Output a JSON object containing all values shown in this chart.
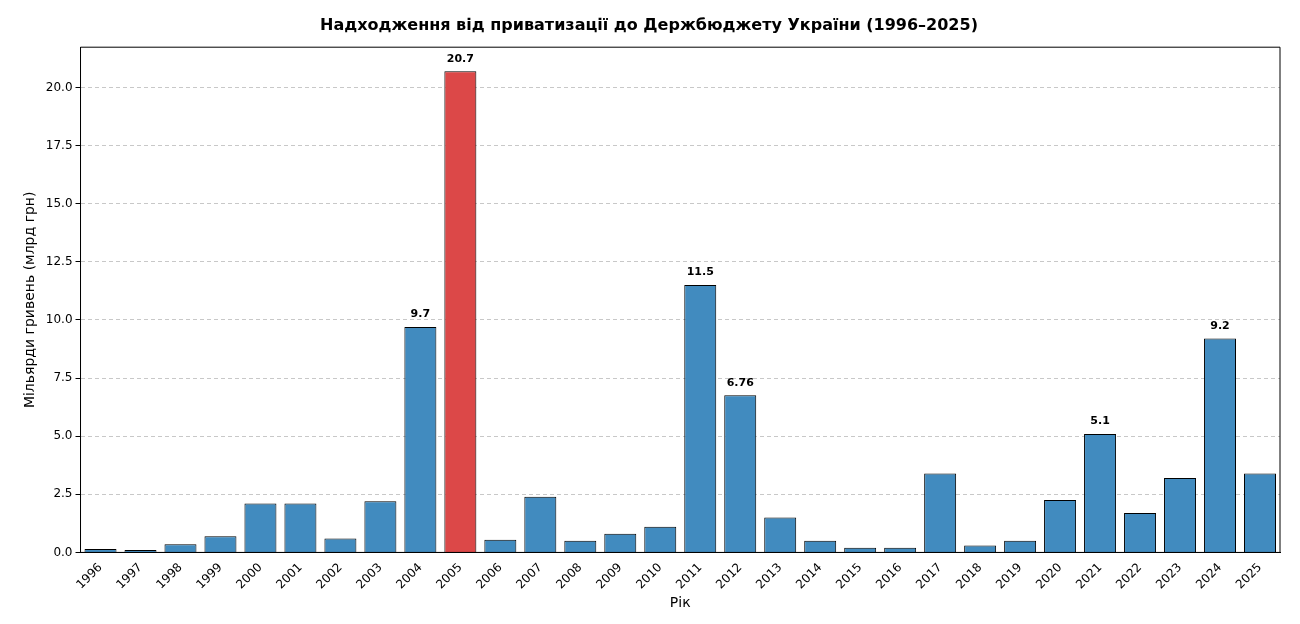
{
  "chart_data": {
    "type": "bar",
    "title": "Надходження від приватизації до Держбюджету України (1996–2025)",
    "xlabel": "Рік",
    "ylabel": "Мільярди гривень (млрд грн)",
    "categories": [
      "1996",
      "1997",
      "1998",
      "1999",
      "2000",
      "2001",
      "2002",
      "2003",
      "2004",
      "2005",
      "2006",
      "2007",
      "2008",
      "2009",
      "2010",
      "2011",
      "2012",
      "2013",
      "2014",
      "2015",
      "2016",
      "2017",
      "2018",
      "2019",
      "2020",
      "2021",
      "2022",
      "2023",
      "2024",
      "2025"
    ],
    "values": [
      0.15,
      0.1,
      0.35,
      0.7,
      2.1,
      2.1,
      0.6,
      2.2,
      9.7,
      20.7,
      0.55,
      2.4,
      0.5,
      0.8,
      1.1,
      11.5,
      6.76,
      1.5,
      0.5,
      0.2,
      0.2,
      3.4,
      0.3,
      0.5,
      2.25,
      5.1,
      1.7,
      3.2,
      9.2,
      3.4
    ],
    "colors": [
      "#418bbf",
      "#418bbf",
      "#418bbf",
      "#418bbf",
      "#418bbf",
      "#418bbf",
      "#418bbf",
      "#418bbf",
      "#418bbf",
      "#dc4848",
      "#418bbf",
      "#418bbf",
      "#418bbf",
      "#418bbf",
      "#418bbf",
      "#418bbf",
      "#418bbf",
      "#418bbf",
      "#418bbf",
      "#418bbf",
      "#418bbf",
      "#418bbf",
      "#418bbf",
      "#418bbf",
      "#418bbf",
      "#418bbf",
      "#418bbf",
      "#418bbf",
      "#418bbf",
      "#418bbf"
    ],
    "value_labels": [
      null,
      null,
      null,
      null,
      null,
      null,
      null,
      null,
      "9.7",
      "20.7",
      null,
      null,
      null,
      null,
      null,
      "11.5",
      "6.76",
      null,
      null,
      null,
      null,
      null,
      null,
      null,
      null,
      "5.1",
      null,
      null,
      "9.2",
      null
    ],
    "ylim": [
      0,
      21.735
    ],
    "yticks": [
      {
        "value": 0,
        "label": "0.0"
      },
      {
        "value": 2.5,
        "label": "2.5"
      },
      {
        "value": 5,
        "label": "5.0"
      },
      {
        "value": 7.5,
        "label": "7.5"
      },
      {
        "value": 10,
        "label": "10.0"
      },
      {
        "value": 12.5,
        "label": "12.5"
      },
      {
        "value": 15,
        "label": "15.0"
      },
      {
        "value": 17.5,
        "label": "17.5"
      },
      {
        "value": 20,
        "label": "20.0"
      }
    ],
    "grid": "y",
    "legend": false
  }
}
